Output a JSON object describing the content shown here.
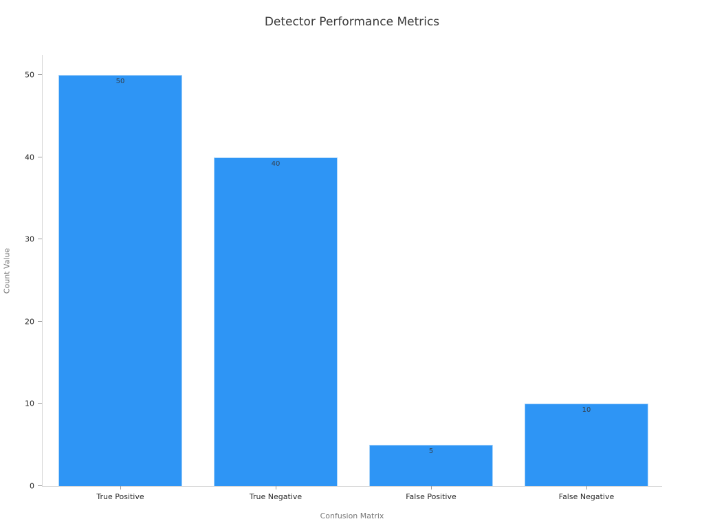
{
  "chart_data": {
    "type": "bar",
    "title": "Detector Performance Metrics",
    "xlabel": "Confusion Matrix",
    "ylabel": "Count Value",
    "categories": [
      "True Positive",
      "True Negative",
      "False Positive",
      "False Negative"
    ],
    "values": [
      50,
      40,
      5,
      10
    ],
    "bar_labels": [
      "50",
      "40",
      "5",
      "10"
    ],
    "ylim": [
      0,
      50
    ],
    "yticks": [
      0,
      10,
      20,
      30,
      40,
      50
    ],
    "grid": false,
    "legend": "none",
    "colors": {
      "bar_fill": "#2E95F5",
      "bar_edge": "#A9D4FA",
      "axis_line": "#D6D6D6",
      "tick_mark": "#9A9A9A",
      "tick_label": "#262626",
      "axis_title": "#767676",
      "title_color": "#3A3A3A",
      "value_color": "#33414F",
      "background": "#FFFFFF"
    }
  }
}
